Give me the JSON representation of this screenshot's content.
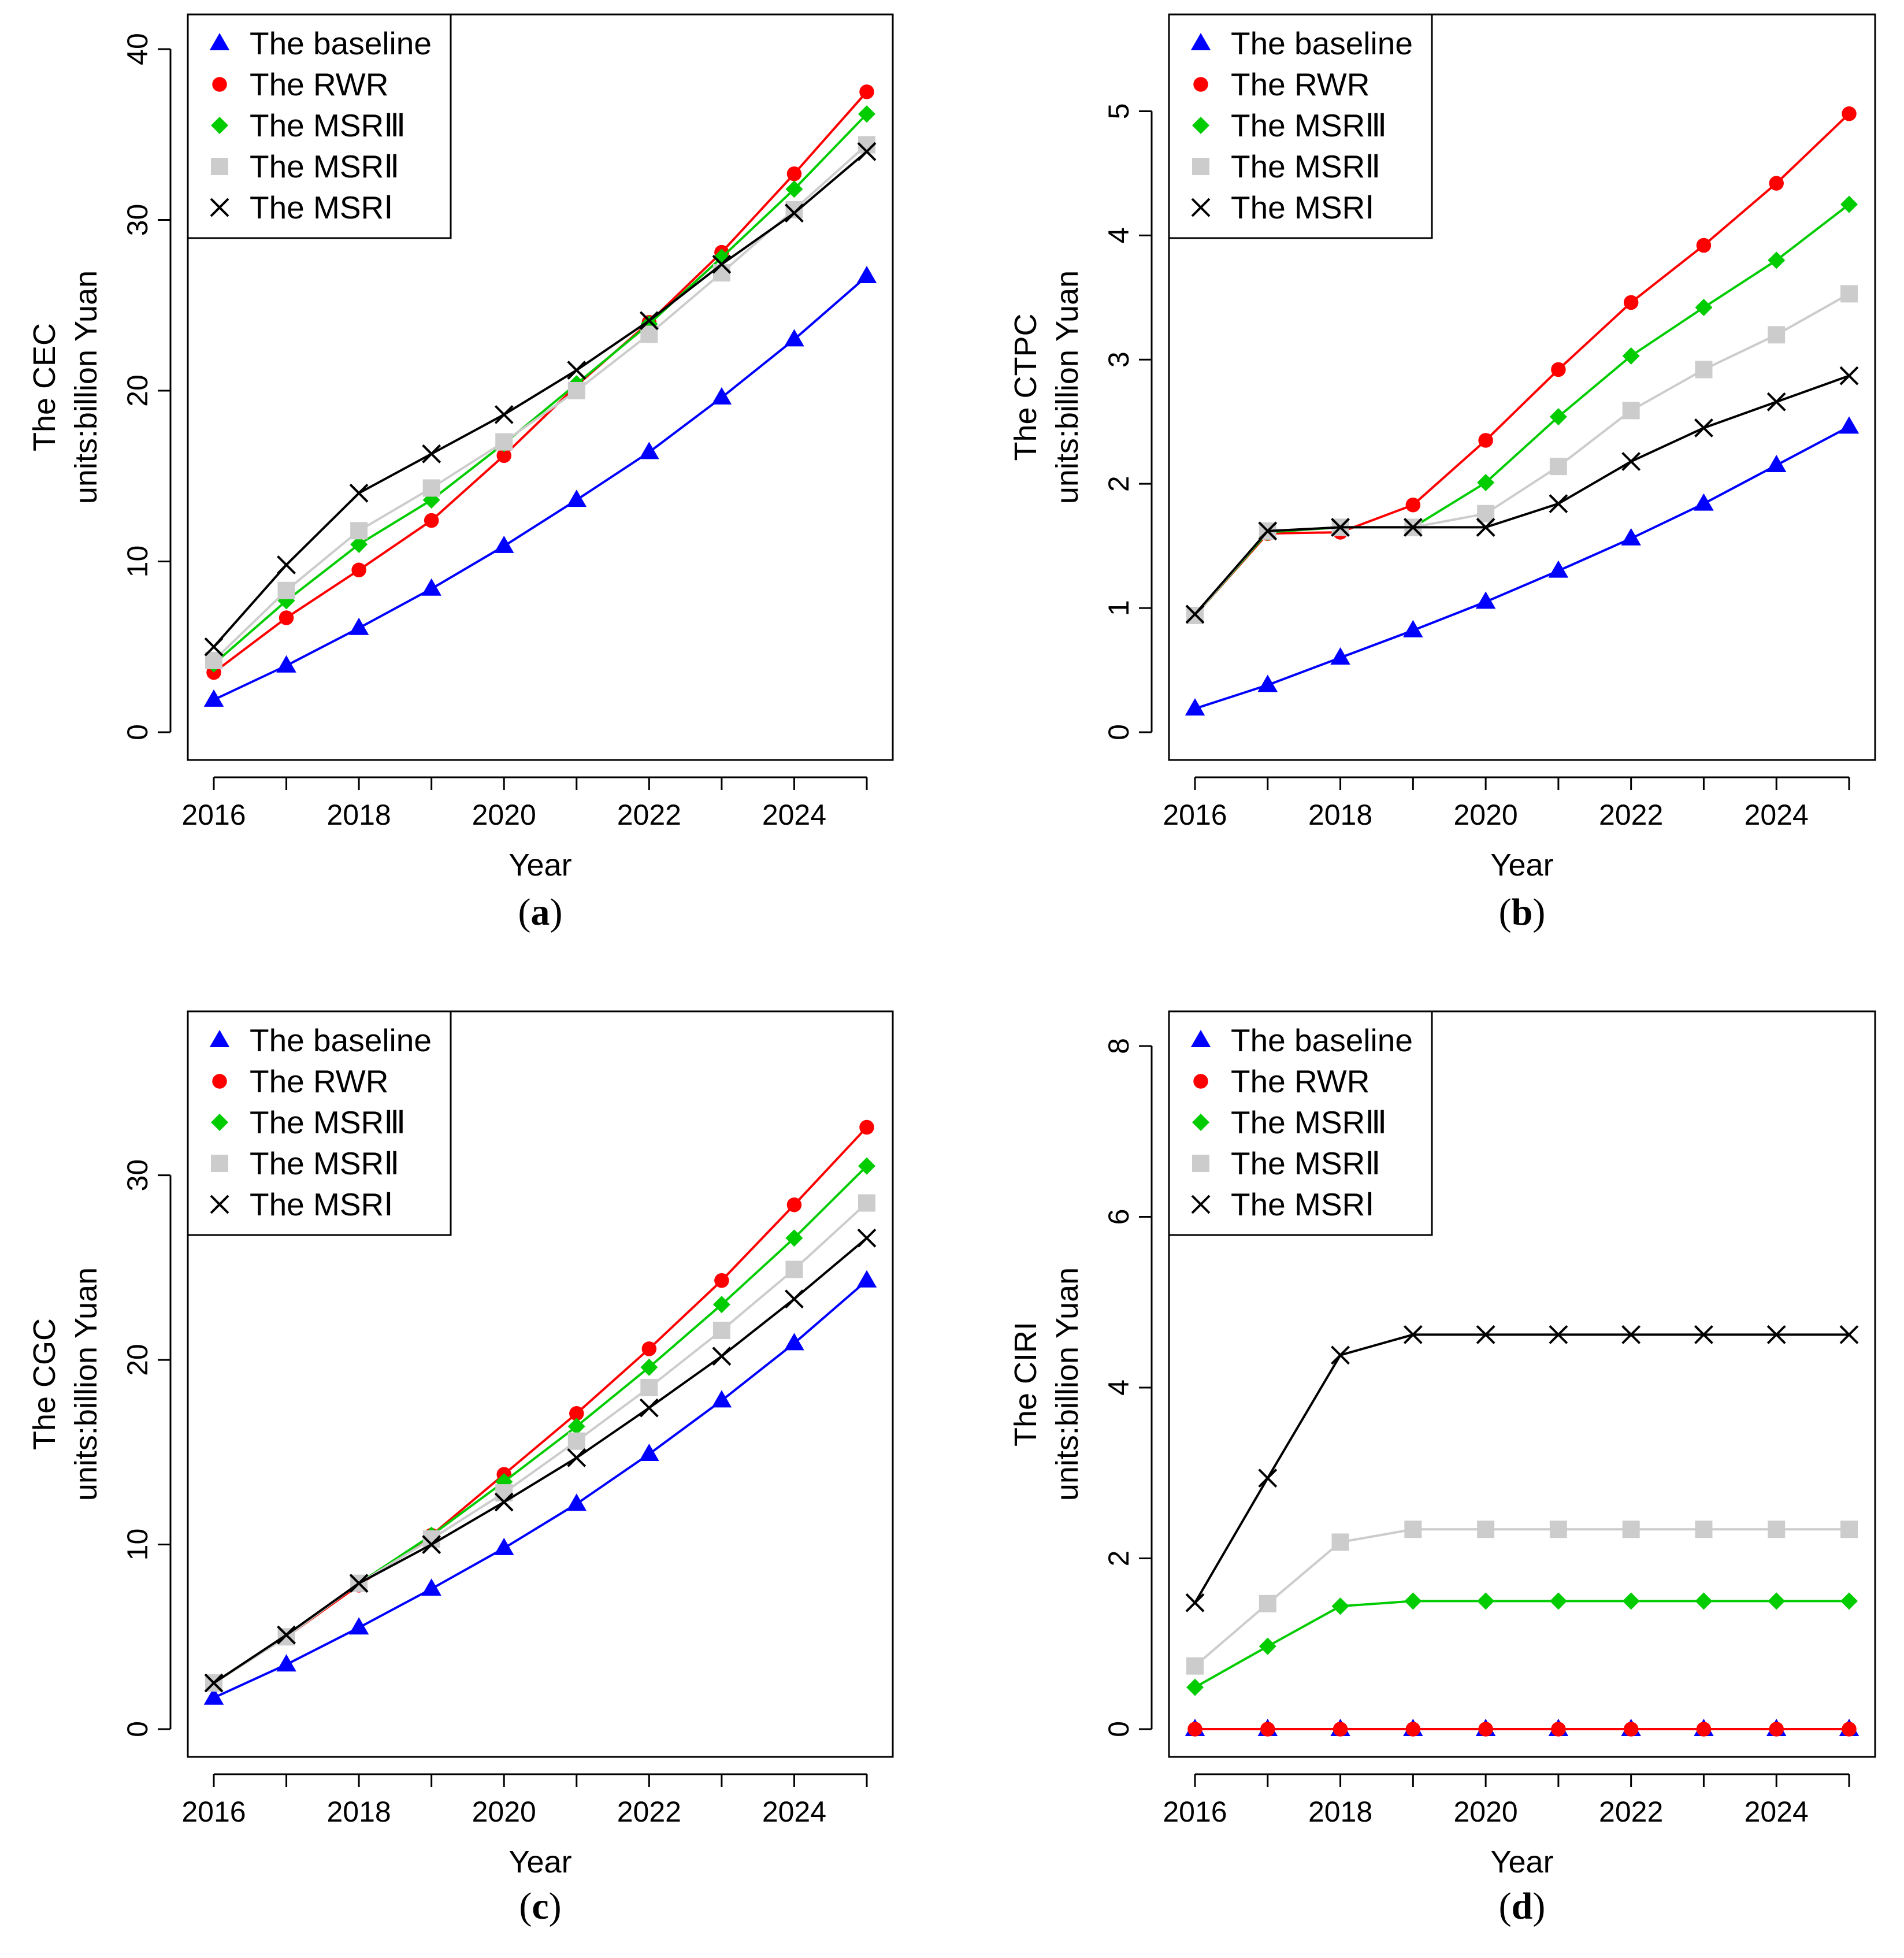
{
  "figure": {
    "legend_items": [
      {
        "label": "The baseline",
        "marker": "triangle",
        "color": "#0000FF"
      },
      {
        "label": "The RWR",
        "marker": "circle",
        "color": "#FF0000"
      },
      {
        "label": "The MSRⅢ",
        "marker": "diamond",
        "color": "#00CC00"
      },
      {
        "label": "The MSRⅡ",
        "marker": "square",
        "color": "#CCCCCC"
      },
      {
        "label": "The MSRⅠ",
        "marker": "cross",
        "color": "#000000"
      }
    ]
  },
  "chart_data": [
    {
      "panel": "(a)",
      "panel_letter": "a",
      "type": "line",
      "xlabel": "Year",
      "ylabel_line1": "The CEC",
      "ylabel_line2": "units:billion Yuan",
      "xlim": [
        2016,
        2025
      ],
      "ylim": [
        0,
        40
      ],
      "x_ticks": [
        2016,
        2018,
        2020,
        2022,
        2024
      ],
      "y_ticks": [
        0,
        10,
        20,
        30,
        40
      ],
      "legend_position": "top-left",
      "grid": false,
      "x": [
        2016,
        2017,
        2018,
        2019,
        2020,
        2021,
        2022,
        2023,
        2024,
        2025
      ],
      "series": [
        {
          "name": "The baseline",
          "values": [
            1.9,
            3.9,
            6.1,
            8.4,
            10.9,
            13.6,
            16.4,
            19.6,
            23.0,
            26.7
          ]
        },
        {
          "name": "The RWR",
          "values": [
            3.5,
            6.7,
            9.5,
            12.4,
            16.2,
            20.3,
            24.0,
            28.1,
            32.7,
            37.5
          ]
        },
        {
          "name": "The MSRⅢ",
          "values": [
            4.0,
            7.7,
            11.0,
            13.6,
            16.9,
            20.4,
            23.9,
            27.8,
            31.8,
            36.2
          ]
        },
        {
          "name": "The MSRⅡ",
          "values": [
            4.2,
            8.3,
            11.8,
            14.3,
            17.0,
            20.0,
            23.3,
            26.9,
            30.6,
            34.4
          ]
        },
        {
          "name": "The MSRⅠ",
          "values": [
            5.0,
            9.8,
            14.0,
            16.3,
            18.6,
            21.2,
            24.1,
            27.4,
            30.4,
            34.0
          ]
        }
      ]
    },
    {
      "panel": "(b)",
      "panel_letter": "b",
      "type": "line",
      "xlabel": "Year",
      "ylabel_line1": "The CTPC",
      "ylabel_line2": "units:billion Yuan",
      "xlim": [
        2016,
        2025
      ],
      "ylim": [
        0,
        5.5
      ],
      "x_ticks": [
        2016,
        2018,
        2020,
        2022,
        2024
      ],
      "y_ticks": [
        0,
        1,
        2,
        3,
        4,
        5
      ],
      "legend_position": "top-left",
      "grid": false,
      "x": [
        2016,
        2017,
        2018,
        2019,
        2020,
        2021,
        2022,
        2023,
        2024,
        2025
      ],
      "series": [
        {
          "name": "The baseline",
          "values": [
            0.19,
            0.38,
            0.6,
            0.82,
            1.05,
            1.3,
            1.56,
            1.84,
            2.15,
            2.46
          ]
        },
        {
          "name": "The RWR",
          "values": [
            0.94,
            1.6,
            1.61,
            1.83,
            2.35,
            2.92,
            3.46,
            3.92,
            4.42,
            4.98
          ]
        },
        {
          "name": "The MSRⅢ",
          "values": [
            0.94,
            1.61,
            1.65,
            1.65,
            2.01,
            2.54,
            3.03,
            3.42,
            3.8,
            4.25
          ]
        },
        {
          "name": "The MSRⅡ",
          "values": [
            0.94,
            1.62,
            1.65,
            1.65,
            1.76,
            2.14,
            2.59,
            2.92,
            3.2,
            3.53
          ]
        },
        {
          "name": "The MSRⅠ",
          "values": [
            0.95,
            1.62,
            1.65,
            1.65,
            1.65,
            1.84,
            2.18,
            2.45,
            2.66,
            2.87
          ]
        }
      ]
    },
    {
      "panel": "(c)",
      "panel_letter": "c",
      "type": "line",
      "xlabel": "Year",
      "ylabel_line1": "The CGC",
      "ylabel_line2": "units:billion Yuan",
      "xlim": [
        2016,
        2025
      ],
      "ylim": [
        0,
        37
      ],
      "x_ticks": [
        2016,
        2018,
        2020,
        2022,
        2024
      ],
      "y_ticks": [
        0,
        10,
        20,
        30
      ],
      "legend_position": "top-left",
      "grid": false,
      "x": [
        2016,
        2017,
        2018,
        2019,
        2020,
        2021,
        2022,
        2023,
        2024,
        2025
      ],
      "series": [
        {
          "name": "The baseline",
          "values": [
            1.7,
            3.5,
            5.5,
            7.6,
            9.8,
            12.2,
            14.9,
            17.8,
            20.9,
            24.3
          ]
        },
        {
          "name": "The RWR",
          "values": [
            2.5,
            5.0,
            7.8,
            10.5,
            13.8,
            17.1,
            20.6,
            24.3,
            28.4,
            32.6
          ]
        },
        {
          "name": "The MSRⅢ",
          "values": [
            2.5,
            5.0,
            7.9,
            10.5,
            13.4,
            16.4,
            19.6,
            23.0,
            26.6,
            30.5
          ]
        },
        {
          "name": "The MSRⅡ",
          "values": [
            2.5,
            5.0,
            7.9,
            10.3,
            12.8,
            15.6,
            18.5,
            21.6,
            24.9,
            28.5
          ]
        },
        {
          "name": "The MSRⅠ",
          "values": [
            2.5,
            5.1,
            7.9,
            10.0,
            12.3,
            14.7,
            17.4,
            20.2,
            23.3,
            26.6
          ]
        }
      ]
    },
    {
      "panel": "(d)",
      "panel_letter": "d",
      "type": "line",
      "xlabel": "Year",
      "ylabel_line1": "The CIRI",
      "ylabel_line2": "units:billion Yuan",
      "xlim": [
        2016,
        2025
      ],
      "ylim": [
        0,
        8
      ],
      "x_ticks": [
        2016,
        2018,
        2020,
        2022,
        2024
      ],
      "y_ticks": [
        0,
        2,
        4,
        6,
        8
      ],
      "legend_position": "top-left",
      "grid": false,
      "x": [
        2016,
        2017,
        2018,
        2019,
        2020,
        2021,
        2022,
        2023,
        2024,
        2025
      ],
      "series": [
        {
          "name": "The baseline",
          "values": [
            0,
            0,
            0,
            0,
            0,
            0,
            0,
            0,
            0,
            0
          ]
        },
        {
          "name": "The RWR",
          "values": [
            0,
            0,
            0,
            0,
            0,
            0,
            0,
            0,
            0,
            0
          ]
        },
        {
          "name": "The MSRⅢ",
          "values": [
            0.49,
            0.97,
            1.44,
            1.5,
            1.5,
            1.5,
            1.5,
            1.5,
            1.5,
            1.5
          ]
        },
        {
          "name": "The MSRⅡ",
          "values": [
            0.74,
            1.47,
            2.19,
            2.34,
            2.34,
            2.34,
            2.34,
            2.34,
            2.34,
            2.34
          ]
        },
        {
          "name": "The MSRⅠ",
          "values": [
            1.48,
            2.94,
            4.38,
            4.62,
            4.62,
            4.62,
            4.62,
            4.62,
            4.62,
            4.62
          ]
        }
      ]
    }
  ]
}
